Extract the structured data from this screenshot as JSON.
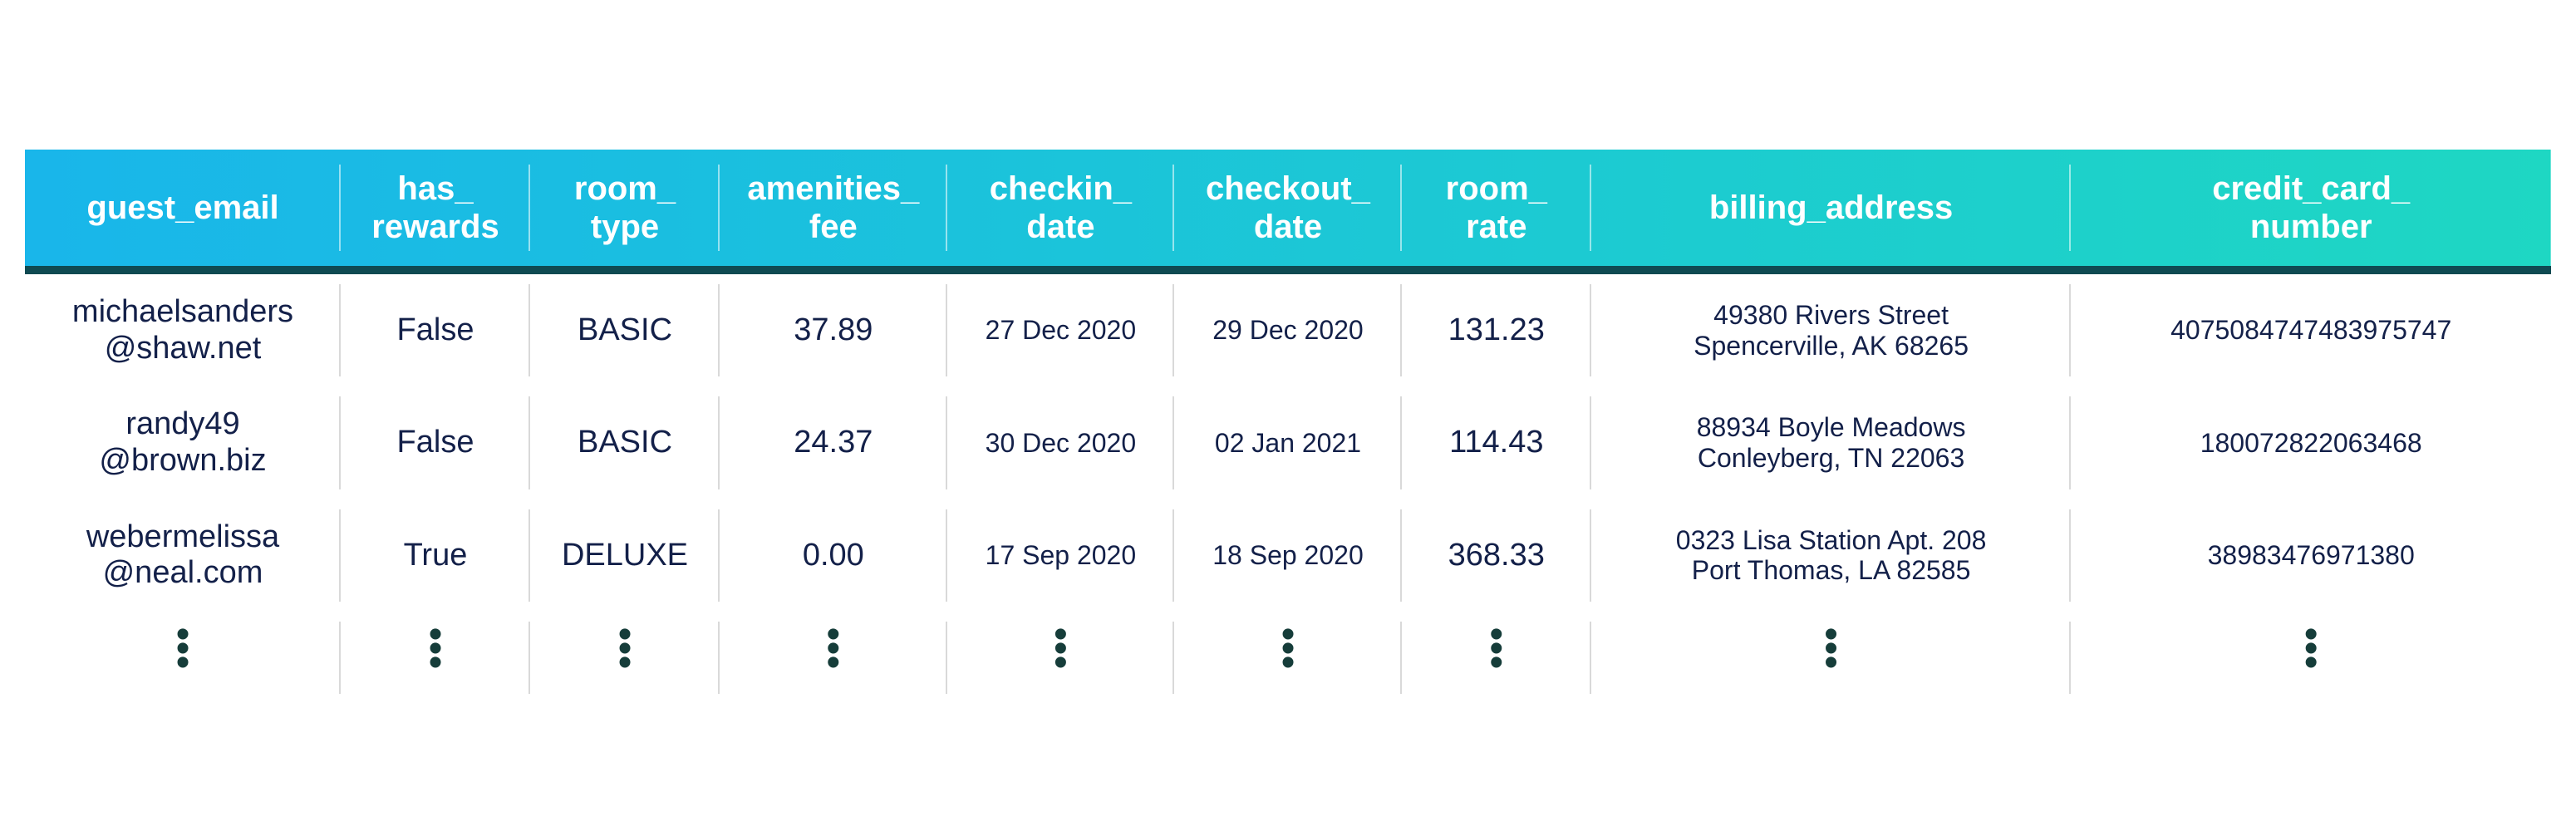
{
  "table": {
    "header_gradient_from": "#19b6ea",
    "header_gradient_to": "#1ed7c3",
    "header_text_color": "#ffffff",
    "header_font_size": 40,
    "underline_color": "#0f4a52",
    "body_text_color": "#132049",
    "body_font_size": 38,
    "small_font_size": 32,
    "col_separator_color": "#d9d9d9",
    "ellipsis_color": "#163d3a",
    "columns": [
      {
        "key": "guest_email",
        "label_line1": "guest_email",
        "label_line2": "",
        "width_pct": 12.5
      },
      {
        "key": "has_rewards",
        "label_line1": "has_",
        "label_line2": "rewards",
        "width_pct": 7.5
      },
      {
        "key": "room_type",
        "label_line1": "room_",
        "label_line2": "type",
        "width_pct": 7.5
      },
      {
        "key": "amenities_fee",
        "label_line1": "amenities_",
        "label_line2": "fee",
        "width_pct": 9.0
      },
      {
        "key": "checkin_date",
        "label_line1": "checkin_",
        "label_line2": "date",
        "width_pct": 9.0
      },
      {
        "key": "checkout_date",
        "label_line1": "checkout_",
        "label_line2": "date",
        "width_pct": 9.0
      },
      {
        "key": "room_rate",
        "label_line1": "room_",
        "label_line2": "rate",
        "width_pct": 7.5
      },
      {
        "key": "billing_address",
        "label_line1": "billing_address",
        "label_line2": "",
        "width_pct": 19.0
      },
      {
        "key": "credit_card_number",
        "label_line1": "credit_card_",
        "label_line2": "number",
        "width_pct": 19.0
      }
    ],
    "rows": [
      {
        "guest_email_line1": "michaelsanders",
        "guest_email_line2": "@shaw.net",
        "has_rewards": "False",
        "room_type": "BASIC",
        "amenities_fee": "37.89",
        "checkin_date": "27 Dec 2020",
        "checkout_date": "29 Dec 2020",
        "room_rate": "131.23",
        "billing_address_line1": "49380 Rivers Street",
        "billing_address_line2": "Spencerville, AK 68265",
        "credit_card_number": "4075084747483975747"
      },
      {
        "guest_email_line1": "randy49",
        "guest_email_line2": "@brown.biz",
        "has_rewards": "False",
        "room_type": "BASIC",
        "amenities_fee": "24.37",
        "checkin_date": "30 Dec 2020",
        "checkout_date": "02 Jan 2021",
        "room_rate": "114.43",
        "billing_address_line1": "88934 Boyle Meadows",
        "billing_address_line2": "Conleyberg, TN 22063",
        "credit_card_number": "180072822063468"
      },
      {
        "guest_email_line1": "webermelissa",
        "guest_email_line2": "@neal.com",
        "has_rewards": "True",
        "room_type": "DELUXE",
        "amenities_fee": "0.00",
        "checkin_date": "17 Sep 2020",
        "checkout_date": "18 Sep 2020",
        "room_rate": "368.33",
        "billing_address_line1": "0323 Lisa Station Apt. 208",
        "billing_address_line2": "Port Thomas, LA 82585",
        "credit_card_number": "38983476971380"
      }
    ],
    "show_ellipsis_row": true
  }
}
